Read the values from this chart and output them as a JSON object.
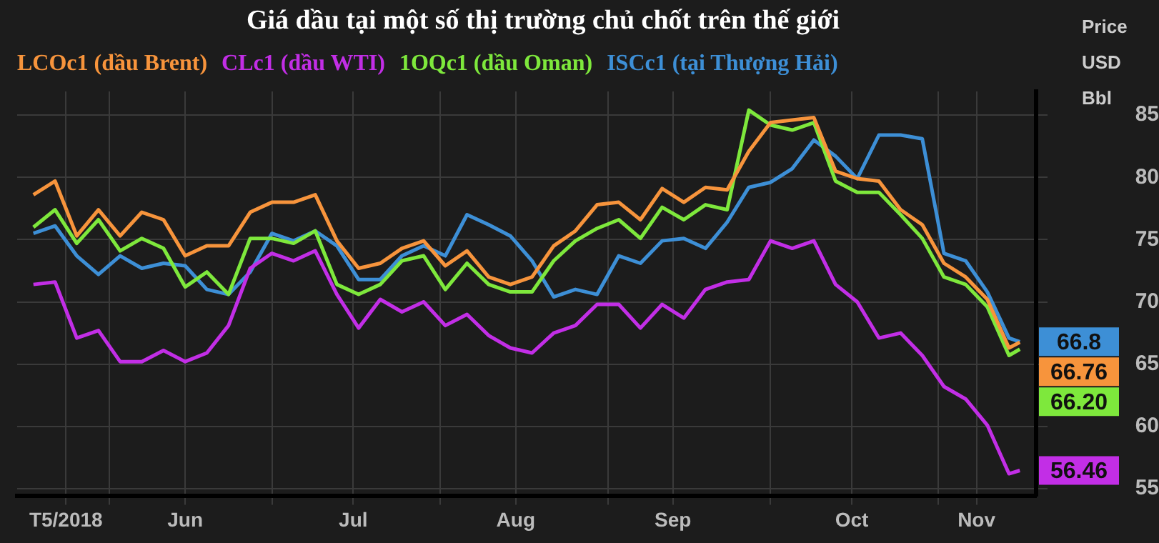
{
  "chart_data": {
    "type": "line",
    "title": "Giá dầu tại một số thị trường chủ chốt trên thế giới",
    "ylabel": "Price USD Bbl",
    "legend": "top left",
    "grid": true,
    "x": [
      "2018-05-18",
      "2018-05-22",
      "2018-05-26",
      "2018-05-30",
      "2018-06-03",
      "2018-06-07",
      "2018-06-11",
      "2018-06-15",
      "2018-06-19",
      "2018-06-23",
      "2018-06-27",
      "2018-07-01",
      "2018-07-05",
      "2018-07-09",
      "2018-07-13",
      "2018-07-17",
      "2018-07-21",
      "2018-07-25",
      "2018-07-29",
      "2018-08-02",
      "2018-08-06",
      "2018-08-10",
      "2018-08-14",
      "2018-08-18",
      "2018-08-22",
      "2018-08-26",
      "2018-08-30",
      "2018-09-03",
      "2018-09-07",
      "2018-09-11",
      "2018-09-15",
      "2018-09-19",
      "2018-09-23",
      "2018-09-27",
      "2018-10-01",
      "2018-10-05",
      "2018-10-09",
      "2018-10-13",
      "2018-10-17",
      "2018-10-21",
      "2018-10-25",
      "2018-10-29",
      "2018-11-02",
      "2018-11-06",
      "2018-11-10",
      "2018-11-14",
      "2018-11-16"
    ],
    "xlim": [
      "2018-05-15",
      "2018-11-19"
    ],
    "xticks": [
      {
        "value": "2018-05-24",
        "label": "T5/2018"
      },
      {
        "value": "2018-06-01",
        "label": null
      },
      {
        "value": "2018-06-15",
        "label": "Jun"
      },
      {
        "value": "2018-07-01",
        "label": null
      },
      {
        "value": "2018-07-16",
        "label": "Jul"
      },
      {
        "value": "2018-08-01",
        "label": null
      },
      {
        "value": "2018-08-15",
        "label": "Aug"
      },
      {
        "value": "2018-09-01",
        "label": null
      },
      {
        "value": "2018-09-13",
        "label": "Sep"
      },
      {
        "value": "2018-10-01",
        "label": null
      },
      {
        "value": "2018-10-16",
        "label": "Oct"
      },
      {
        "value": "2018-11-01",
        "label": null
      },
      {
        "value": "2018-11-08",
        "label": "Nov"
      }
    ],
    "ylim": [
      54.4,
      86.9
    ],
    "yticks": [
      55,
      60,
      65,
      70,
      75,
      80,
      85
    ],
    "series": [
      {
        "name": "LCOc1 (dầu Brent)",
        "color": "#f7943c",
        "values": [
          78.6,
          79.7,
          75.3,
          77.4,
          75.3,
          77.2,
          76.6,
          73.7,
          74.5,
          74.5,
          77.2,
          78,
          78,
          78.6,
          74.9,
          72.7,
          73.1,
          74.3,
          74.9,
          72.9,
          74.1,
          72,
          71.4,
          72,
          74.5,
          75.7,
          77.8,
          78,
          76.6,
          79.1,
          78,
          79.2,
          79,
          82.1,
          84.4,
          84.6,
          84.8,
          80.5,
          79.9,
          79.7,
          77.4,
          76.2,
          73.1,
          72,
          70.2,
          66.3,
          66.76
        ],
        "value_labels": [
          null,
          null,
          null,
          null,
          null,
          null,
          null,
          null,
          null,
          null,
          null,
          null,
          null,
          null,
          null,
          null,
          null,
          null,
          null,
          null,
          null,
          null,
          null,
          null,
          null,
          null,
          null,
          null,
          null,
          null,
          null,
          null,
          null,
          null,
          null,
          null,
          null,
          null,
          null,
          null,
          null,
          null,
          null,
          null,
          null,
          null,
          "66.76"
        ]
      },
      {
        "name": "CLc1 (dầu WTI)",
        "color": "#c22ee6",
        "values": [
          71.4,
          71.6,
          67.1,
          67.7,
          65.2,
          65.2,
          66.1,
          65.2,
          65.9,
          68.1,
          72.7,
          73.9,
          73.3,
          74.1,
          70.6,
          67.9,
          70.2,
          69.2,
          70,
          68.1,
          69,
          67.3,
          66.3,
          65.9,
          67.5,
          68.1,
          69.8,
          69.8,
          67.9,
          69.8,
          68.7,
          71,
          71.6,
          71.8,
          74.9,
          74.3,
          74.9,
          71.4,
          70,
          67.1,
          67.5,
          65.7,
          63.2,
          62.2,
          60.1,
          56.2,
          56.46
        ],
        "value_labels": [
          null,
          null,
          null,
          null,
          null,
          null,
          null,
          null,
          null,
          null,
          null,
          null,
          null,
          null,
          null,
          null,
          null,
          null,
          null,
          null,
          null,
          null,
          null,
          null,
          null,
          null,
          null,
          null,
          null,
          null,
          null,
          null,
          null,
          null,
          null,
          null,
          null,
          null,
          null,
          null,
          null,
          null,
          null,
          null,
          null,
          null,
          "56.46"
        ]
      },
      {
        "name": "1OQc1 (dầu Oman)",
        "color": "#7ee83c",
        "values": [
          76,
          77.4,
          74.7,
          76.6,
          74.1,
          75.1,
          74.3,
          71.2,
          72.4,
          70.6,
          75.1,
          75.1,
          74.7,
          75.7,
          71.4,
          70.6,
          71.4,
          73.3,
          73.7,
          71,
          73.1,
          71.4,
          70.8,
          70.8,
          73.3,
          74.9,
          75.9,
          76.6,
          75.1,
          77.6,
          76.6,
          77.8,
          77.4,
          85.4,
          84.2,
          83.8,
          84.4,
          79.7,
          78.8,
          78.8,
          77,
          75.1,
          72,
          71.4,
          69.6,
          65.7,
          66.2
        ],
        "value_labels": [
          null,
          null,
          null,
          null,
          null,
          null,
          null,
          null,
          null,
          null,
          null,
          null,
          null,
          null,
          null,
          null,
          null,
          null,
          null,
          null,
          null,
          null,
          null,
          null,
          null,
          null,
          null,
          null,
          null,
          null,
          null,
          null,
          null,
          null,
          null,
          null,
          null,
          null,
          null,
          null,
          null,
          null,
          null,
          null,
          null,
          null,
          "66.20"
        ]
      },
      {
        "name": "ISCc1 (tại Thượng Hải)",
        "color": "#3d8fd6",
        "values": [
          75.5,
          76.1,
          73.7,
          72.2,
          73.7,
          72.7,
          73.1,
          72.9,
          71,
          70.6,
          72.4,
          75.5,
          74.9,
          75.7,
          74.5,
          71.8,
          71.8,
          73.7,
          74.5,
          73.7,
          77,
          76.2,
          75.3,
          73.3,
          70.4,
          71,
          70.6,
          73.7,
          73.1,
          74.9,
          75.1,
          74.3,
          76.4,
          79.2,
          79.6,
          80.7,
          83,
          81.7,
          79.9,
          83.4,
          83.4,
          83.1,
          73.9,
          73.3,
          70.8,
          67.1,
          66.8
        ],
        "value_labels": [
          null,
          null,
          null,
          null,
          null,
          null,
          null,
          null,
          null,
          null,
          null,
          null,
          null,
          null,
          null,
          null,
          null,
          null,
          null,
          null,
          null,
          null,
          null,
          null,
          null,
          null,
          null,
          null,
          null,
          null,
          null,
          null,
          null,
          null,
          null,
          null,
          null,
          null,
          null,
          null,
          null,
          null,
          null,
          null,
          null,
          null,
          "66.8"
        ]
      }
    ]
  }
}
